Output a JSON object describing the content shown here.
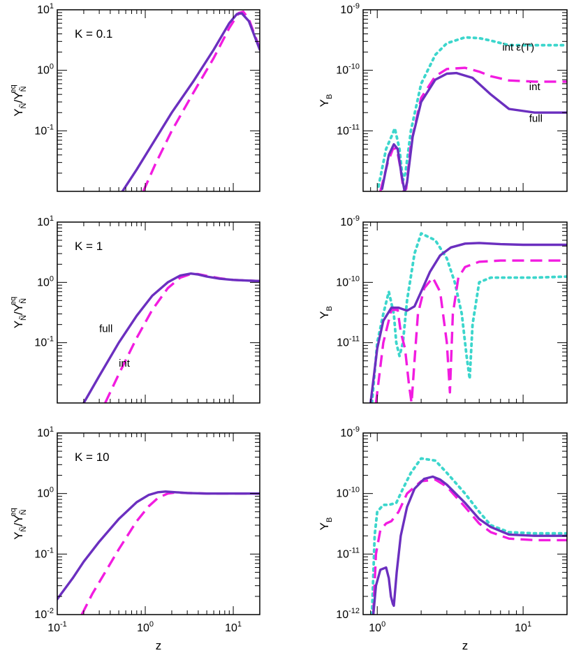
{
  "colors": {
    "full": "#6B2FBF",
    "int": "#F21CE0",
    "int_eps": "#3CD6CC",
    "axis": "#000000"
  },
  "chart_data": [
    {
      "id": "ratio-k01",
      "type": "line",
      "xscale": "log",
      "yscale": "log",
      "xlim": [
        0.1,
        20
      ],
      "ylim": [
        0.01,
        10
      ],
      "xlabel": "",
      "ylabel": "Y_Ñ/Y_Ñ^eq",
      "annotation": "K = 0.1",
      "yticks": [
        {
          "e": "-1"
        },
        {
          "e": "0"
        },
        {
          "e": "1"
        }
      ],
      "xticks": [],
      "series": [
        {
          "name": "full",
          "style": "solid",
          "x": [
            0.55,
            0.8,
            1.2,
            2,
            3.5,
            6,
            9,
            11,
            12.5,
            15,
            20
          ],
          "y": [
            0.01,
            0.023,
            0.06,
            0.2,
            0.65,
            2.2,
            6,
            8.5,
            8.7,
            6.5,
            2.2
          ]
        },
        {
          "name": "int",
          "style": "dashed",
          "x": [
            0.95,
            1.3,
            2,
            3.5,
            6,
            9,
            11.5,
            13,
            15,
            20
          ],
          "y": [
            0.01,
            0.028,
            0.1,
            0.42,
            1.6,
            5,
            8.8,
            9.3,
            7,
            2.3
          ]
        }
      ]
    },
    {
      "id": "yb-k01",
      "type": "line",
      "xscale": "log",
      "yscale": "log",
      "xlim": [
        0.8,
        20
      ],
      "ylim": [
        1e-12,
        1e-09
      ],
      "xlabel": "",
      "ylabel": "Y_B",
      "yticks": [
        {
          "e": "-11"
        },
        {
          "e": "-10"
        },
        {
          "e": "-9"
        }
      ],
      "xticks": [],
      "labels": [
        {
          "text": "int ε(T)",
          "x": 7.2,
          "y": 2.1e-10
        },
        {
          "text": "int",
          "x": 11,
          "y": 4.7e-11
        },
        {
          "text": "full",
          "x": 11,
          "y": 1.4e-11
        }
      ],
      "series": [
        {
          "name": "int ε(T)",
          "style": "dotted",
          "x": [
            1.02,
            1.15,
            1.25,
            1.32,
            1.42,
            1.5,
            1.56,
            1.7,
            2,
            2.5,
            3,
            4,
            5,
            6,
            8,
            12,
            20
          ],
          "y": [
            1.2e-12,
            5e-12,
            8e-12,
            1.1e-11,
            5e-12,
            1.5e-12,
            2e-12,
            1e-11,
            6e-11,
            1.8e-10,
            2.8e-10,
            3.5e-10,
            3.4e-10,
            3.1e-10,
            2.6e-10,
            2.6e-10,
            2.6e-10
          ]
        },
        {
          "name": "int",
          "style": "dashed",
          "x": [
            1.05,
            1.18,
            1.28,
            1.36,
            1.44,
            1.52,
            1.58,
            1.7,
            2,
            2.5,
            3,
            4,
            5,
            6,
            8,
            12,
            20
          ],
          "y": [
            1e-12,
            3e-12,
            5e-12,
            5.2e-12,
            2.5e-12,
            1e-12,
            1.1e-12,
            6e-12,
            3.5e-11,
            8e-11,
            1.05e-10,
            1.1e-10,
            9.5e-11,
            8e-11,
            6.8e-11,
            6.5e-11,
            6.5e-11
          ]
        },
        {
          "name": "full",
          "style": "solid",
          "x": [
            1.08,
            1.2,
            1.3,
            1.38,
            1.46,
            1.54,
            1.6,
            1.75,
            2,
            2.5,
            3,
            3.5,
            4.5,
            6,
            8,
            12,
            20
          ],
          "y": [
            1.1e-12,
            4e-12,
            6e-12,
            5e-12,
            2e-12,
            1e-12,
            1.4e-12,
            8e-12,
            3e-11,
            7e-11,
            8.8e-11,
            9e-11,
            7.5e-11,
            4e-11,
            2.3e-11,
            2e-11,
            2e-11
          ]
        }
      ]
    },
    {
      "id": "ratio-k1",
      "type": "line",
      "xscale": "log",
      "yscale": "log",
      "xlim": [
        0.1,
        20
      ],
      "ylim": [
        0.01,
        10
      ],
      "xlabel": "",
      "ylabel": "Y_Ñ/Y_Ñ^eq",
      "annotation": "K = 1",
      "yticks": [
        {
          "e": "-1"
        },
        {
          "e": "0"
        },
        {
          "e": "1"
        }
      ],
      "xticks": [],
      "labels": [
        {
          "text": "full",
          "x": 0.3,
          "y": 0.15
        },
        {
          "text": "int",
          "x": 0.5,
          "y": 0.04
        }
      ],
      "series": [
        {
          "name": "full",
          "style": "solid",
          "x": [
            0.2,
            0.3,
            0.5,
            0.8,
            1.2,
            1.8,
            2.5,
            3.3,
            4,
            5,
            7,
            10,
            20
          ],
          "y": [
            0.01,
            0.028,
            0.1,
            0.28,
            0.6,
            1,
            1.3,
            1.4,
            1.35,
            1.25,
            1.15,
            1.1,
            1.05
          ]
        },
        {
          "name": "int",
          "style": "dashed",
          "x": [
            0.35,
            0.5,
            0.8,
            1.2,
            1.8,
            2.5,
            3.3,
            4,
            5,
            7,
            10,
            20
          ],
          "y": [
            0.01,
            0.03,
            0.12,
            0.35,
            0.8,
            1.2,
            1.38,
            1.37,
            1.28,
            1.17,
            1.1,
            1.05
          ]
        }
      ]
    },
    {
      "id": "yb-k1",
      "type": "line",
      "xscale": "log",
      "yscale": "log",
      "xlim": [
        0.8,
        20
      ],
      "ylim": [
        1e-12,
        1e-09
      ],
      "xlabel": "",
      "ylabel": "Y_B",
      "yticks": [
        {
          "e": "-11"
        },
        {
          "e": "-10"
        },
        {
          "e": "-9"
        }
      ],
      "xticks": [],
      "series": [
        {
          "name": "int ε(T)",
          "style": "dotted",
          "x": [
            0.92,
            1.0,
            1.1,
            1.2,
            1.3,
            1.35,
            1.42,
            1.5,
            1.6,
            1.8,
            2,
            2.5,
            3,
            3.4,
            3.8,
            4.1,
            4.3,
            4.5,
            5,
            6,
            8,
            12,
            20
          ],
          "y": [
            1e-12,
            1e-11,
            3e-11,
            7e-11,
            3e-11,
            1e-11,
            6e-12,
            1e-11,
            5e-11,
            3e-10,
            6.5e-10,
            5e-10,
            2.5e-10,
            1e-10,
            3e-11,
            6e-12,
            2.5e-12,
            2e-11,
            1e-10,
            1.2e-10,
            1.2e-10,
            1.2e-10,
            1.25e-10
          ]
        },
        {
          "name": "int",
          "style": "dashed",
          "x": [
            0.98,
            1.1,
            1.25,
            1.38,
            1.45,
            1.55,
            1.65,
            1.72,
            1.8,
            1.9,
            2.1,
            2.4,
            2.7,
            3,
            3.15,
            3.3,
            3.6,
            4,
            5,
            7,
            10,
            20
          ],
          "y": [
            1e-12,
            1e-11,
            3.5e-11,
            3.5e-11,
            1.5e-11,
            8e-12,
            2e-12,
            1e-12,
            5e-12,
            3e-11,
            8e-11,
            1.2e-10,
            7e-11,
            1e-11,
            1.5e-12,
            3e-11,
            1.2e-10,
            1.8e-10,
            2.2e-10,
            2.3e-10,
            2.3e-10,
            2.3e-10
          ]
        },
        {
          "name": "full",
          "style": "solid",
          "x": [
            0.9,
            1.0,
            1.1,
            1.25,
            1.4,
            1.6,
            1.8,
            2,
            2.3,
            2.7,
            3.2,
            4,
            5,
            7,
            10,
            20
          ],
          "y": [
            1e-12,
            8e-12,
            2.3e-11,
            3.8e-11,
            3.8e-11,
            3.4e-11,
            4e-11,
            7e-11,
            1.5e-10,
            2.8e-10,
            3.8e-10,
            4.4e-10,
            4.5e-10,
            4.3e-10,
            4.2e-10,
            4.2e-10
          ]
        }
      ]
    },
    {
      "id": "ratio-k10",
      "type": "line",
      "xscale": "log",
      "yscale": "log",
      "xlim": [
        0.1,
        20
      ],
      "ylim": [
        0.01,
        10
      ],
      "xlabel": "z",
      "ylabel": "Y_Ñ/Y_Ñ^eq",
      "annotation": "K = 10",
      "yticks": [
        {
          "e": "-2"
        },
        {
          "e": "-1"
        },
        {
          "e": "0"
        },
        {
          "e": "1"
        }
      ],
      "xticks": [
        {
          "e": "-1"
        },
        {
          "e": "0"
        },
        {
          "e": "1"
        }
      ],
      "series": [
        {
          "name": "full",
          "style": "solid",
          "x": [
            0.1,
            0.15,
            0.2,
            0.3,
            0.5,
            0.8,
            1.1,
            1.4,
            1.7,
            2.2,
            3,
            5,
            10,
            20
          ],
          "y": [
            0.018,
            0.04,
            0.075,
            0.16,
            0.38,
            0.72,
            0.95,
            1.05,
            1.08,
            1.05,
            1.02,
            1.0,
            1.0,
            1.0
          ]
        },
        {
          "name": "int",
          "style": "dashed",
          "x": [
            0.19,
            0.25,
            0.35,
            0.5,
            0.8,
            1.1,
            1.4,
            1.8,
            2.2,
            3,
            5,
            10,
            20
          ],
          "y": [
            0.01,
            0.022,
            0.05,
            0.12,
            0.35,
            0.62,
            0.85,
            1.0,
            1.04,
            1.02,
            1.0,
            1.0,
            1.0
          ]
        }
      ]
    },
    {
      "id": "yb-k10",
      "type": "line",
      "xscale": "log",
      "yscale": "log",
      "xlim": [
        0.8,
        20
      ],
      "ylim": [
        1e-12,
        1e-09
      ],
      "xlabel": "z",
      "ylabel": "Y_B",
      "yticks": [
        {
          "e": "-12"
        },
        {
          "e": "-11"
        },
        {
          "e": "-10"
        },
        {
          "e": "-9"
        }
      ],
      "xticks": [
        {
          "e": "0"
        },
        {
          "e": "1"
        }
      ],
      "series": [
        {
          "name": "int ε(T)",
          "style": "dotted",
          "x": [
            0.92,
            0.96,
            1.0,
            1.1,
            1.2,
            1.35,
            1.5,
            1.7,
            2,
            2.5,
            3,
            4,
            5,
            6,
            8,
            12,
            20
          ],
          "y": [
            1e-12,
            2e-11,
            5e-11,
            6.5e-11,
            6.5e-11,
            7e-11,
            1.2e-10,
            2.2e-10,
            3.8e-10,
            3.5e-10,
            2.2e-10,
            1e-10,
            5e-11,
            3e-11,
            2.3e-11,
            2.2e-11,
            2.2e-11
          ]
        },
        {
          "name": "int",
          "style": "dashed",
          "x": [
            0.94,
            0.98,
            1.05,
            1.15,
            1.25,
            1.4,
            1.6,
            2,
            2.5,
            3,
            4,
            5,
            6,
            8,
            12,
            20
          ],
          "y": [
            1e-12,
            1e-11,
            2.5e-11,
            3.2e-11,
            3.5e-11,
            5e-11,
            1e-10,
            1.6e-10,
            1.7e-10,
            1.3e-10,
            6e-11,
            3.2e-11,
            2.3e-11,
            1.8e-11,
            1.7e-11,
            1.7e-11
          ]
        },
        {
          "name": "full",
          "style": "solid",
          "x": [
            0.94,
            0.98,
            1.05,
            1.15,
            1.2,
            1.24,
            1.28,
            1.3,
            1.36,
            1.45,
            1.6,
            1.8,
            2.1,
            2.4,
            2.7,
            3,
            4,
            5,
            6,
            8,
            12,
            20
          ],
          "y": [
            1e-12,
            3e-12,
            5.5e-12,
            6e-12,
            4e-12,
            2e-12,
            1.5e-12,
            1.4e-12,
            5e-12,
            2e-11,
            6e-11,
            1.2e-10,
            1.75e-10,
            1.9e-10,
            1.7e-10,
            1.4e-10,
            7e-11,
            3.8e-11,
            2.8e-11,
            2.1e-11,
            2e-11,
            2e-11
          ]
        }
      ]
    }
  ]
}
